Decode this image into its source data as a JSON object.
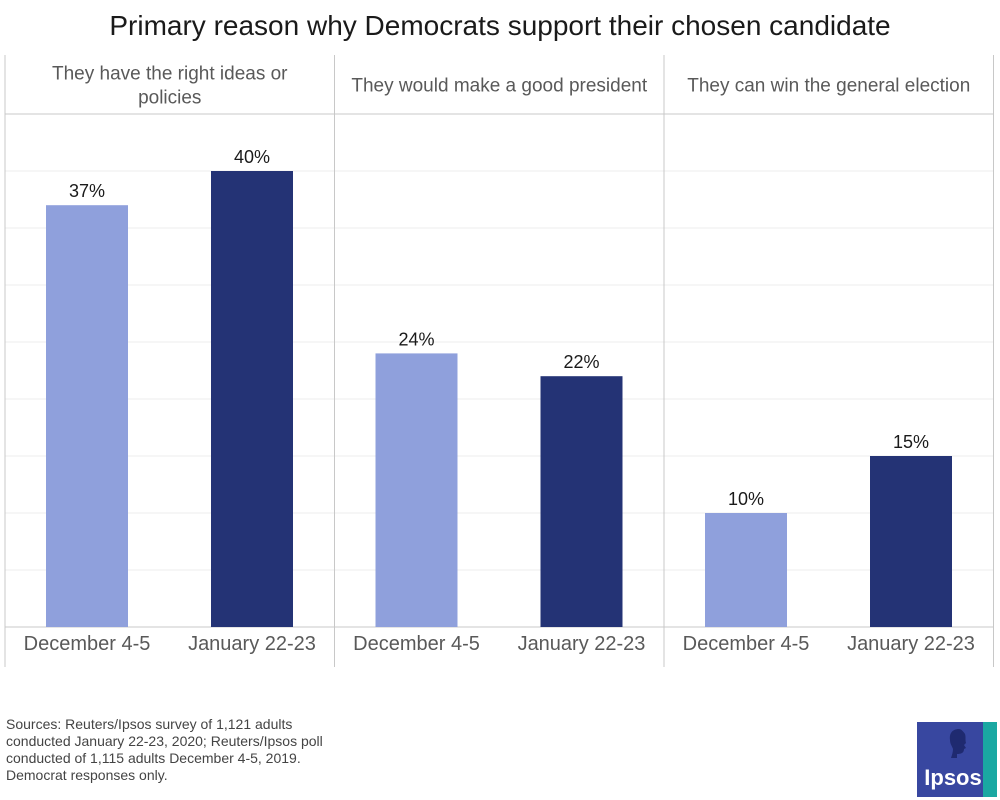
{
  "title": "Primary reason why Democrats support their chosen candidate",
  "chart_data": {
    "type": "bar",
    "title": "Primary reason why Democrats support their chosen candidate",
    "panels": [
      {
        "label": "They have the right ideas or policies",
        "label_lines": [
          "They have the right ideas or",
          "policies"
        ],
        "categories": [
          "December 4-5",
          "January 22-23"
        ],
        "values": [
          37,
          40
        ],
        "value_labels": [
          "37%",
          "40%"
        ]
      },
      {
        "label": "They would make a good president",
        "label_lines": [
          "They would make a good president"
        ],
        "categories": [
          "December 4-5",
          "January 22-23"
        ],
        "values": [
          24,
          22
        ],
        "value_labels": [
          "24%",
          "22%"
        ]
      },
      {
        "label": "They can win the general election",
        "label_lines": [
          "They can win the general election"
        ],
        "categories": [
          "December 4-5",
          "January 22-23"
        ],
        "values": [
          10,
          15
        ],
        "value_labels": [
          "10%",
          "15%"
        ]
      }
    ],
    "series_colors": [
      "#8fa0dc",
      "#243375"
    ],
    "ylim": [
      0,
      45
    ],
    "grid": true
  },
  "sources": "Sources: Reuters/Ipsos survey of 1,121 adults conducted January 22-23, 2020; Reuters/Ipsos poll conducted of 1,115 adults December 4-5, 2019. Democrat responses only.",
  "logo": {
    "text": "Ipsos",
    "bg_color": "#3847a0",
    "accent_color": "#1aa8a2"
  }
}
